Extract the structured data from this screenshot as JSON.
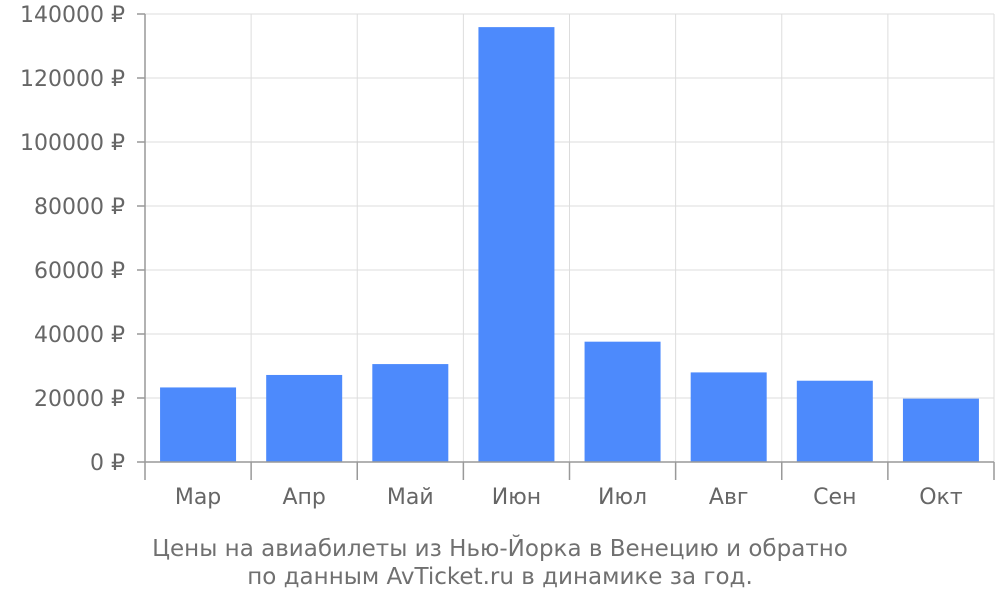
{
  "chart_data": {
    "type": "bar",
    "categories": [
      "Мар",
      "Апр",
      "Май",
      "Июн",
      "Июл",
      "Авг",
      "Сен",
      "Окт"
    ],
    "values": [
      23300,
      27200,
      30600,
      135900,
      37600,
      28000,
      25400,
      19800
    ],
    "ylim": [
      0,
      140000
    ],
    "y_ticks": [
      "0 ₽",
      "20000 ₽",
      "40000 ₽",
      "60000 ₽",
      "80000 ₽",
      "100000 ₽",
      "120000 ₽",
      "140000 ₽"
    ],
    "y_tick_values": [
      0,
      20000,
      40000,
      60000,
      80000,
      100000,
      120000,
      140000
    ],
    "bar_color": "#4d8afc",
    "grid": true,
    "caption_line1": "Цены на авиабилеты из Нью-Йорка в Венецию и обратно",
    "caption_line2": "по данным AvTicket.ru в динамике за год."
  }
}
